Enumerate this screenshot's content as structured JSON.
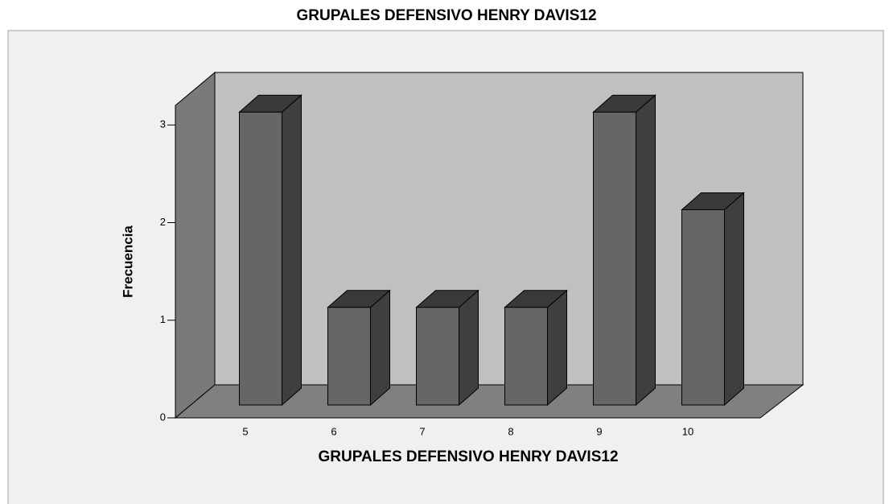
{
  "chart_data": {
    "type": "bar3d",
    "title": "GRUPALES DEFENSIVO HENRY DAVIS12",
    "x_label": "GRUPALES DEFENSIVO HENRY DAVIS12",
    "y_label": "Frecuencia",
    "categories": [
      "5",
      "6",
      "7",
      "8",
      "9",
      "10"
    ],
    "values": [
      3,
      1,
      1,
      1,
      3,
      2
    ],
    "color": "#666666",
    "ylim": [
      0,
      3.2
    ],
    "yticks": [
      0,
      1,
      2,
      3
    ]
  }
}
